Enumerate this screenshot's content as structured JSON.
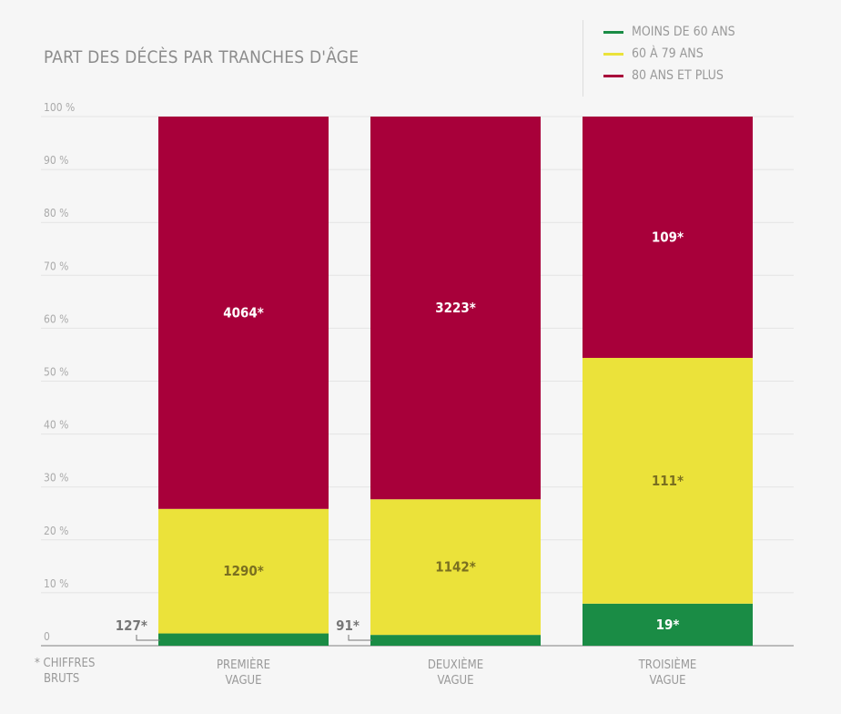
{
  "chart_data": {
    "type": "bar",
    "stacked": true,
    "normalized": true,
    "title": "PART DES DÉCÈS PAR TRANCHES D'ÂGE",
    "categories_lines": [
      [
        "PREMIÈRE",
        "VAGUE"
      ],
      [
        "DEUXIÈME",
        "VAGUE"
      ],
      [
        "TROISIÈME",
        "VAGUE"
      ]
    ],
    "categories": [
      "PREMIÈRE VAGUE",
      "DEUXIÈME VAGUE",
      "TROISIÈME VAGUE"
    ],
    "series": [
      {
        "name": "MOINS DE 60 ANS",
        "color": "#1a8c45",
        "values": [
          127,
          91,
          19
        ],
        "labels": [
          "127*",
          "91*",
          "19*"
        ]
      },
      {
        "name": "60 À 79 ANS",
        "color": "#ebe23a",
        "values": [
          1290,
          1142,
          111
        ],
        "labels": [
          "1290*",
          "1142*",
          "111*"
        ]
      },
      {
        "name": "80 ANS ET PLUS",
        "color": "#a8003a",
        "values": [
          4064,
          3223,
          109
        ],
        "labels": [
          "4064*",
          "3223*",
          "109*"
        ]
      }
    ],
    "y_ticks": [
      "0",
      "10 %",
      "20 %",
      "30 %",
      "40 %",
      "50 %",
      "60 %",
      "70 %",
      "80 %",
      "90 %",
      "100 %"
    ],
    "ylim": [
      0,
      100
    ],
    "grid": true,
    "legend": "top-right",
    "footnote": [
      "* CHIFFRES",
      "BRUTS"
    ]
  }
}
